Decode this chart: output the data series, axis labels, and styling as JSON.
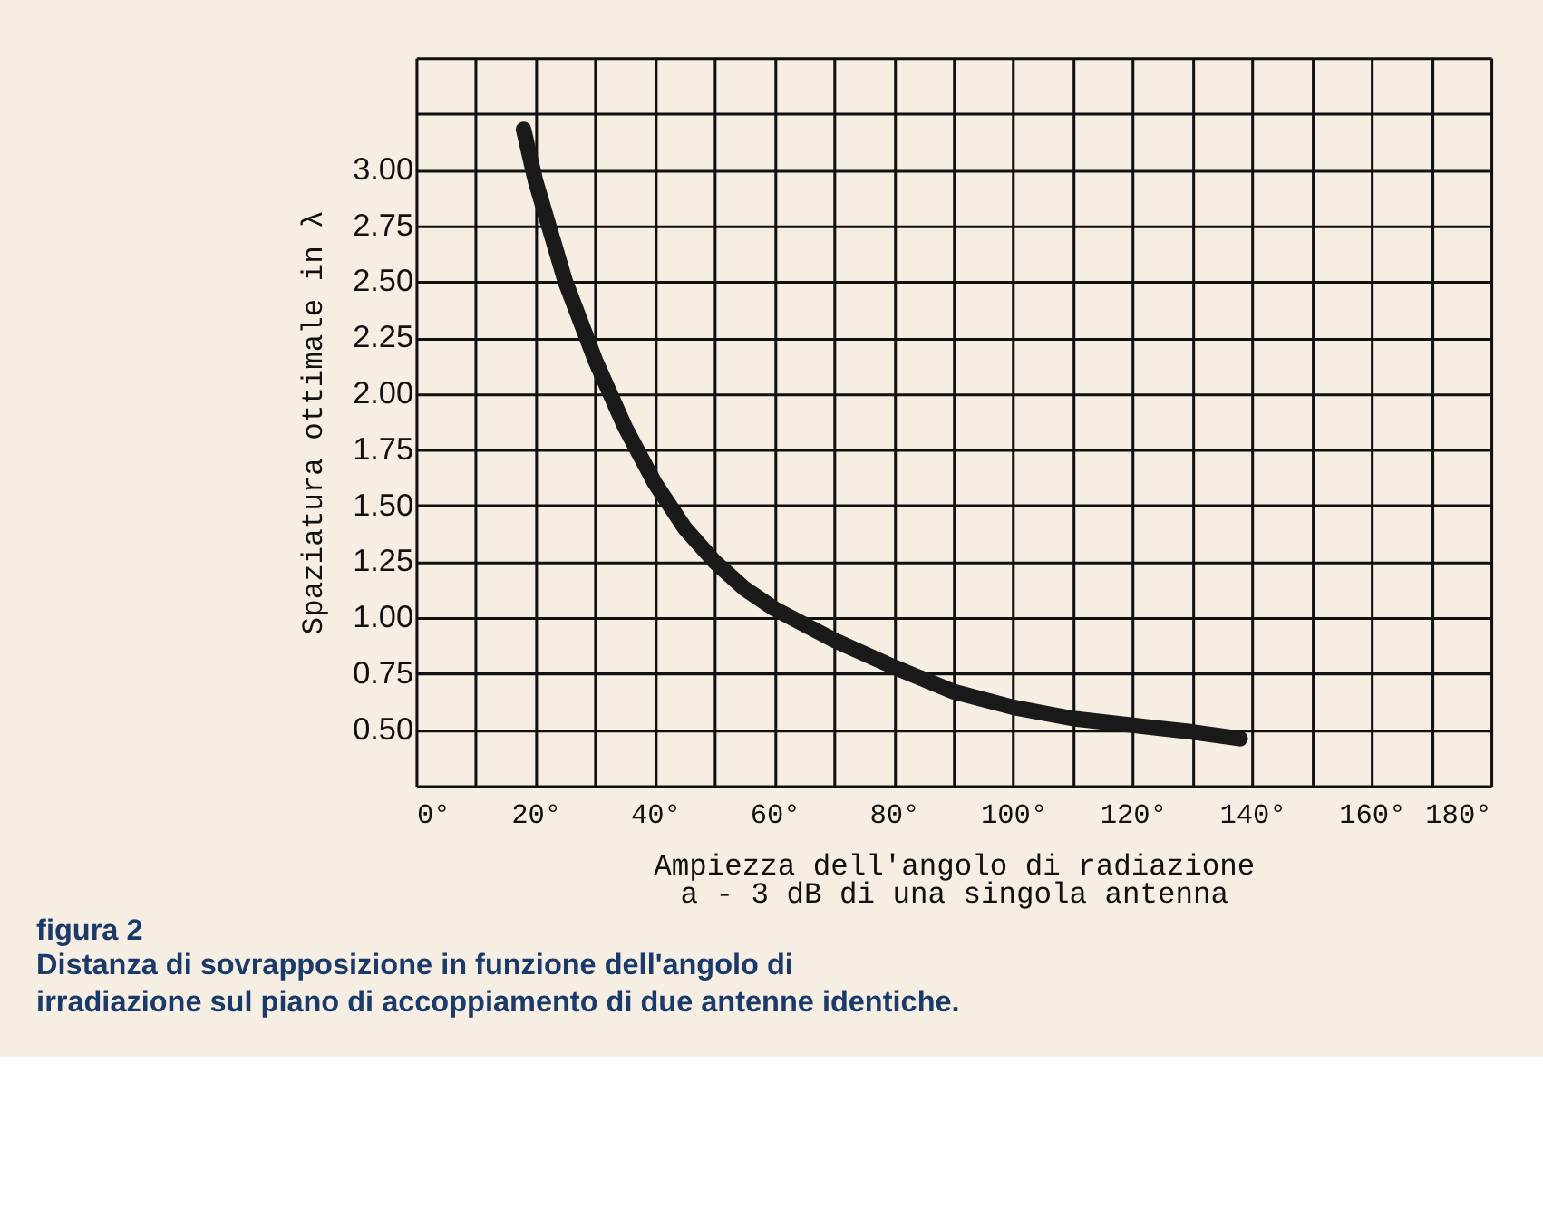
{
  "chart_data": {
    "type": "line",
    "xlabel": "Ampiezza dell'angolo di radiazione\na - 3 dB di una singola antenna",
    "ylabel": "Spaziatura ottimale in λ",
    "annotations": [
      "figura 2",
      "Distanza di sovrapposizione in funzione dell'angolo di irradiazione sul piano di accoppiamento di due antenne identiche."
    ],
    "series": [
      {
        "color": "#1a1a1a",
        "x": [
          18,
          20,
          25,
          30,
          35,
          40,
          45,
          50,
          55,
          60,
          70,
          80,
          90,
          100,
          110,
          120,
          130,
          138
        ],
        "values": [
          3.18,
          2.95,
          2.5,
          2.15,
          1.85,
          1.6,
          1.4,
          1.25,
          1.13,
          1.04,
          0.9,
          0.78,
          0.67,
          0.6,
          0.55,
          0.52,
          0.49,
          0.46
        ]
      }
    ],
    "xlim": [
      0,
      180
    ],
    "ylim": [
      0.25,
      3.5
    ],
    "xticks": [
      {
        "value": 0,
        "label": "0°"
      },
      {
        "value": 10,
        "label": null
      },
      {
        "value": 20,
        "label": "20°"
      },
      {
        "value": 30,
        "label": null
      },
      {
        "value": 40,
        "label": "40°"
      },
      {
        "value": 50,
        "label": null
      },
      {
        "value": 60,
        "label": "60°"
      },
      {
        "value": 70,
        "label": null
      },
      {
        "value": 80,
        "label": "80°"
      },
      {
        "value": 90,
        "label": null
      },
      {
        "value": 100,
        "label": "100°"
      },
      {
        "value": 110,
        "label": null
      },
      {
        "value": 120,
        "label": "120°"
      },
      {
        "value": 130,
        "label": null
      },
      {
        "value": 140,
        "label": "140°"
      },
      {
        "value": 150,
        "label": null
      },
      {
        "value": 160,
        "label": "160°"
      },
      {
        "value": 170,
        "label": null
      },
      {
        "value": 180,
        "label": "180°"
      }
    ],
    "yticks": [
      {
        "value": 0.25,
        "label": null
      },
      {
        "value": 0.5,
        "label": "0.50"
      },
      {
        "value": 0.75,
        "label": "0.75"
      },
      {
        "value": 1.0,
        "label": "1.00"
      },
      {
        "value": 1.25,
        "label": "1.25"
      },
      {
        "value": 1.5,
        "label": "1.50"
      },
      {
        "value": 1.75,
        "label": "1.75"
      },
      {
        "value": 2.0,
        "label": "2.00"
      },
      {
        "value": 2.25,
        "label": "2.25"
      },
      {
        "value": 2.5,
        "label": "2.50"
      },
      {
        "value": 2.75,
        "label": "2.75"
      },
      {
        "value": 3.0,
        "label": "3.00"
      },
      {
        "value": 3.25,
        "label": null
      },
      {
        "value": 3.5,
        "label": null
      }
    ],
    "grid": true,
    "line_style": "solid"
  }
}
